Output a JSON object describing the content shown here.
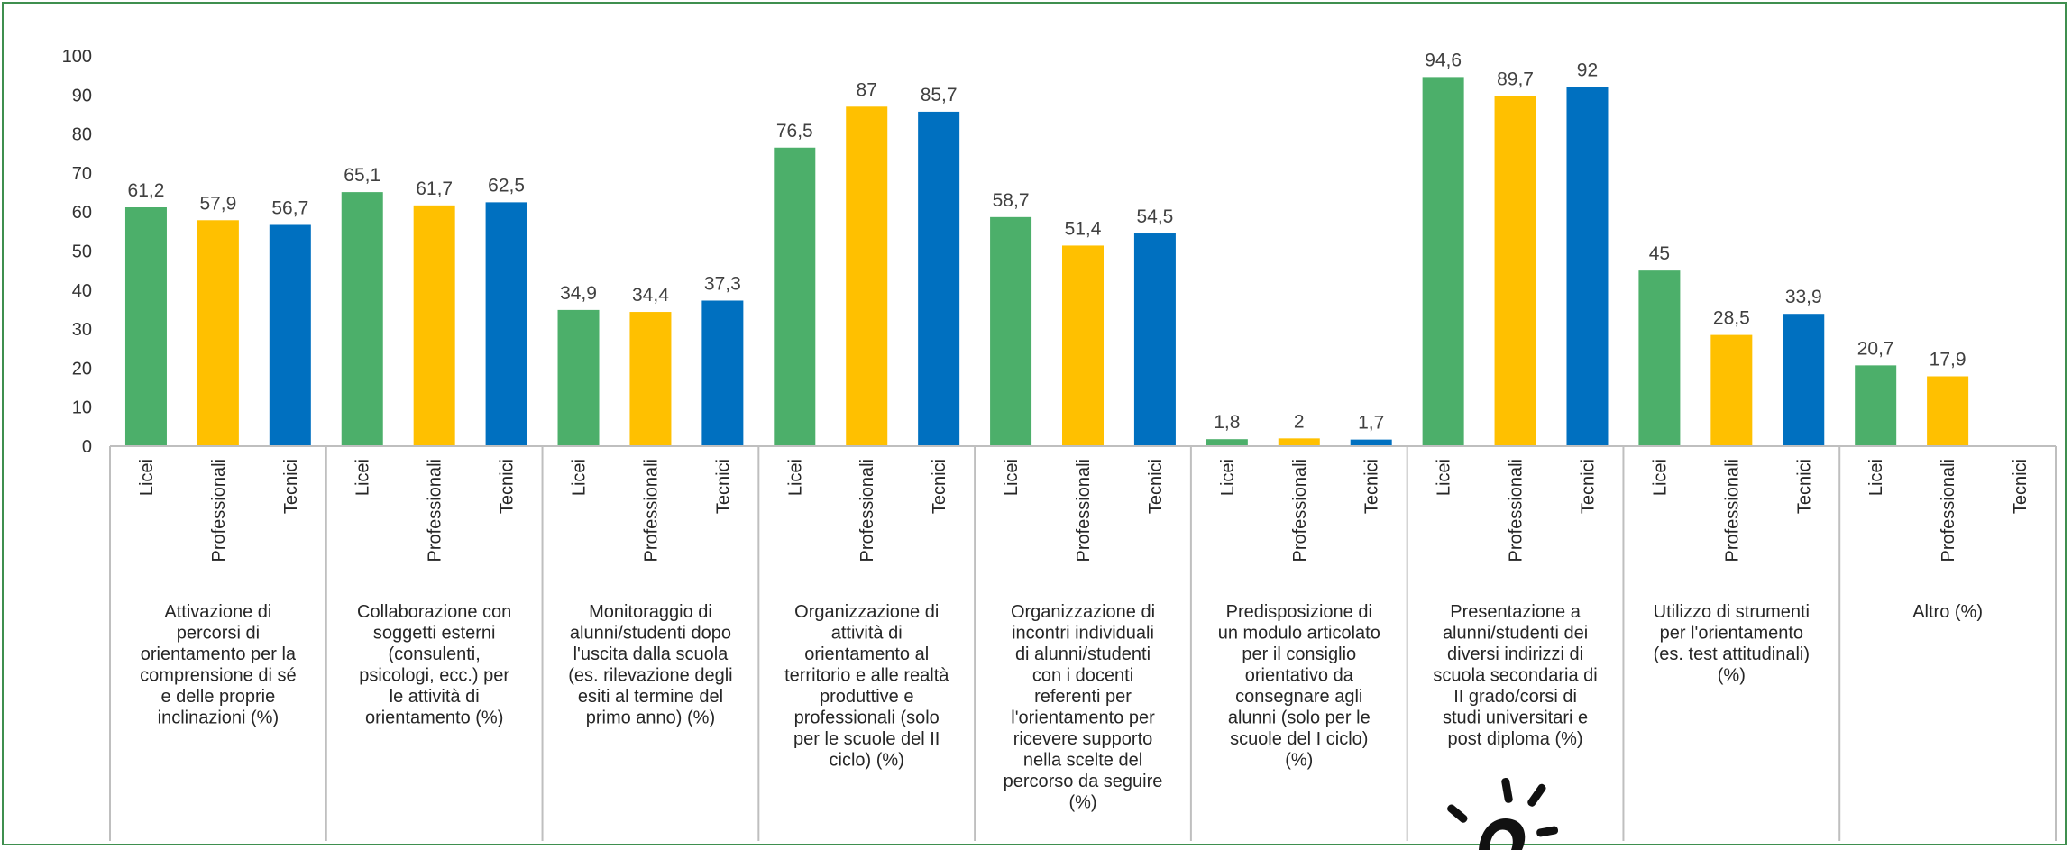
{
  "chart_data": {
    "type": "bar",
    "categories": [
      "Licei",
      "Professionali",
      "Tecnici"
    ],
    "groups": [
      {
        "label": [
          "Attivazione di",
          "percorsi di",
          "orientamento per la",
          "comprensione di sé",
          "e delle proprie",
          "inclinazioni (%)"
        ],
        "values": [
          61.2,
          57.9,
          56.7
        ],
        "value_labels": [
          "61,2",
          "57,9",
          "56,7"
        ]
      },
      {
        "label": [
          "Collaborazione con",
          "soggetti esterni",
          "(consulenti,",
          "psicologi, ecc.) per",
          "le attività di",
          "orientamento (%)"
        ],
        "values": [
          65.1,
          61.7,
          62.5
        ],
        "value_labels": [
          "65,1",
          "61,7",
          "62,5"
        ]
      },
      {
        "label": [
          "Monitoraggio di",
          "alunni/studenti dopo",
          "l'uscita dalla scuola",
          "(es. rilevazione degli",
          "esiti al termine del",
          "primo anno) (%)"
        ],
        "values": [
          34.9,
          34.4,
          37.3
        ],
        "value_labels": [
          "34,9",
          "34,4",
          "37,3"
        ]
      },
      {
        "label": [
          "Organizzazione di",
          "attività di",
          "orientamento al",
          "territorio e alle realtà",
          "produttive e",
          "professionali (solo",
          "per le scuole del II",
          "ciclo) (%)"
        ],
        "values": [
          76.5,
          87,
          85.7
        ],
        "value_labels": [
          "76,5",
          "87",
          "85,7"
        ]
      },
      {
        "label": [
          "Organizzazione di",
          "incontri individuali",
          "di alunni/studenti",
          "con i docenti",
          "referenti per",
          "l'orientamento per",
          "ricevere supporto",
          "nella scelte del",
          "percorso da seguire",
          "(%)"
        ],
        "values": [
          58.7,
          51.4,
          54.5
        ],
        "value_labels": [
          "58,7",
          "51,4",
          "54,5"
        ]
      },
      {
        "label": [
          "Predisposizione di",
          "un modulo articolato",
          "per il consiglio",
          "orientativo da",
          "consegnare agli",
          "alunni (solo per le",
          "scuole del I ciclo)",
          "(%)"
        ],
        "values": [
          1.8,
          2,
          1.7
        ],
        "value_labels": [
          "1,8",
          "2",
          "1,7"
        ]
      },
      {
        "label": [
          "Presentazione a",
          "alunni/studenti dei",
          "diversi indirizzi di",
          "scuola secondaria di",
          "II grado/corsi di",
          "studi universitari e",
          "post diploma (%)"
        ],
        "values": [
          94.6,
          89.7,
          92
        ],
        "value_labels": [
          "94,6",
          "89,7",
          "92"
        ]
      },
      {
        "label": [
          "Utilizzo di strumenti",
          "per l'orientamento",
          "(es. test attitudinali)",
          "(%)"
        ],
        "values": [
          45,
          28.5,
          33.9
        ],
        "value_labels": [
          "45",
          "28,5",
          "33,9"
        ]
      },
      {
        "label": [
          "Altro (%)"
        ],
        "values": [
          20.7,
          17.9,
          null
        ],
        "value_labels": [
          "20,7",
          "17,9",
          ""
        ]
      }
    ],
    "series_colors": [
      "#4caf6a",
      "#ffc000",
      "#0070c0"
    ],
    "ylim": [
      0,
      100
    ],
    "yticks": [
      "0",
      "10",
      "20",
      "30",
      "40",
      "50",
      "60",
      "70",
      "80",
      "90",
      "100"
    ],
    "grid": false,
    "legend": "none"
  }
}
